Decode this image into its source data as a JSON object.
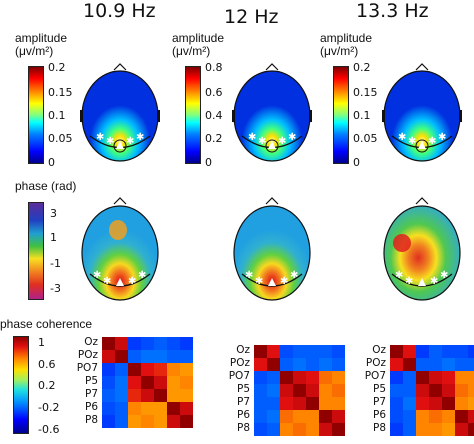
{
  "frequencies": [
    "10.9 Hz",
    "12 Hz",
    "13.3 Hz"
  ],
  "amplitude": {
    "label_line1": "amplitude",
    "label_line2": "(μv/m²)",
    "colorbars": [
      {
        "ticks": [
          "0.2",
          "0.15",
          "0.1",
          "0.05",
          "0"
        ]
      },
      {
        "ticks": [
          "0.8",
          "0.6",
          "0.4",
          "0.2",
          "0"
        ]
      },
      {
        "ticks": [
          "0.2",
          "0.15",
          "0.1",
          "0.05",
          "0"
        ]
      }
    ]
  },
  "phase": {
    "label": "phase (rad)",
    "ticks": [
      "3",
      "1",
      "-1",
      "-3"
    ]
  },
  "coherence": {
    "label": "phase coherence",
    "ticks": [
      "1",
      "0.6",
      "0.2",
      "-0.2",
      "-0.6"
    ],
    "channels": [
      "Oz",
      "POz",
      "PO7",
      "P5",
      "P7",
      "P6",
      "P8"
    ],
    "matrices": [
      [
        [
          1,
          0.85,
          -0.6,
          -0.55,
          -0.5,
          -0.55,
          -0.6
        ],
        [
          0.85,
          1,
          -0.5,
          -0.45,
          -0.45,
          -0.5,
          -0.5
        ],
        [
          -0.6,
          -0.5,
          1,
          0.8,
          0.75,
          0.55,
          0.5
        ],
        [
          -0.55,
          -0.45,
          0.8,
          1,
          0.85,
          0.5,
          0.55
        ],
        [
          -0.5,
          -0.45,
          0.75,
          0.85,
          1,
          0.5,
          0.5
        ],
        [
          -0.55,
          -0.5,
          0.55,
          0.5,
          0.5,
          1,
          0.85
        ],
        [
          -0.6,
          -0.5,
          0.5,
          0.55,
          0.5,
          0.85,
          1
        ]
      ],
      [
        [
          1,
          0.8,
          -0.55,
          -0.5,
          -0.5,
          -0.5,
          -0.55
        ],
        [
          0.8,
          1,
          -0.5,
          -0.45,
          -0.5,
          -0.45,
          -0.5
        ],
        [
          -0.55,
          -0.5,
          1,
          0.85,
          0.8,
          0.6,
          0.55
        ],
        [
          -0.5,
          -0.45,
          0.85,
          1,
          0.85,
          0.55,
          0.6
        ],
        [
          -0.5,
          -0.5,
          0.8,
          0.85,
          1,
          0.55,
          0.55
        ],
        [
          -0.5,
          -0.45,
          0.6,
          0.55,
          0.55,
          1,
          0.85
        ],
        [
          -0.55,
          -0.5,
          0.55,
          0.6,
          0.55,
          0.85,
          1
        ]
      ],
      [
        [
          1,
          0.8,
          -0.6,
          -0.5,
          -0.55,
          -0.55,
          -0.6
        ],
        [
          0.8,
          1,
          -0.5,
          -0.5,
          -0.45,
          -0.5,
          -0.5
        ],
        [
          -0.6,
          -0.5,
          1,
          0.85,
          0.8,
          0.55,
          0.55
        ],
        [
          -0.5,
          -0.5,
          0.85,
          1,
          0.85,
          0.6,
          0.55
        ],
        [
          -0.55,
          -0.45,
          0.8,
          0.85,
          1,
          0.55,
          0.5
        ],
        [
          -0.55,
          -0.5,
          0.55,
          0.6,
          0.55,
          1,
          0.85
        ],
        [
          -0.6,
          -0.5,
          0.55,
          0.55,
          0.5,
          0.85,
          1
        ]
      ]
    ]
  }
}
